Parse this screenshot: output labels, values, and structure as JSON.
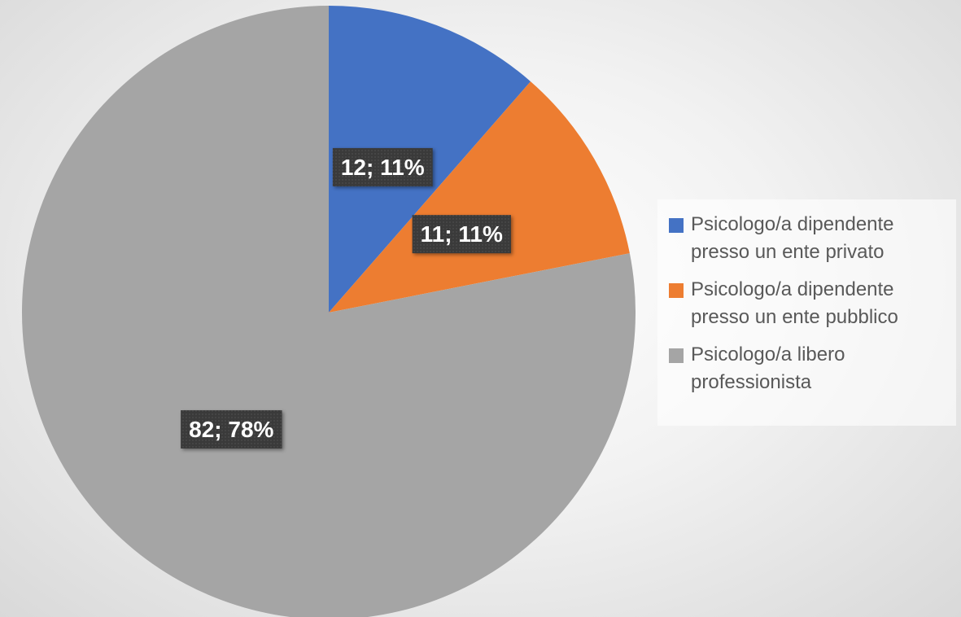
{
  "chart_data": {
    "type": "pie",
    "categories": [
      "Psicologo/a dipendente presso un ente privato",
      "Psicologo/a dipendente presso un ente pubblico",
      "Psicologo/a libero professionista"
    ],
    "values": [
      12,
      11,
      82
    ],
    "value_labels": [
      "12; 11%",
      "11; 11%",
      "82; 78%"
    ],
    "colors": [
      "#4472c4",
      "#ed7d31",
      "#a5a5a5"
    ],
    "legend": "right"
  }
}
